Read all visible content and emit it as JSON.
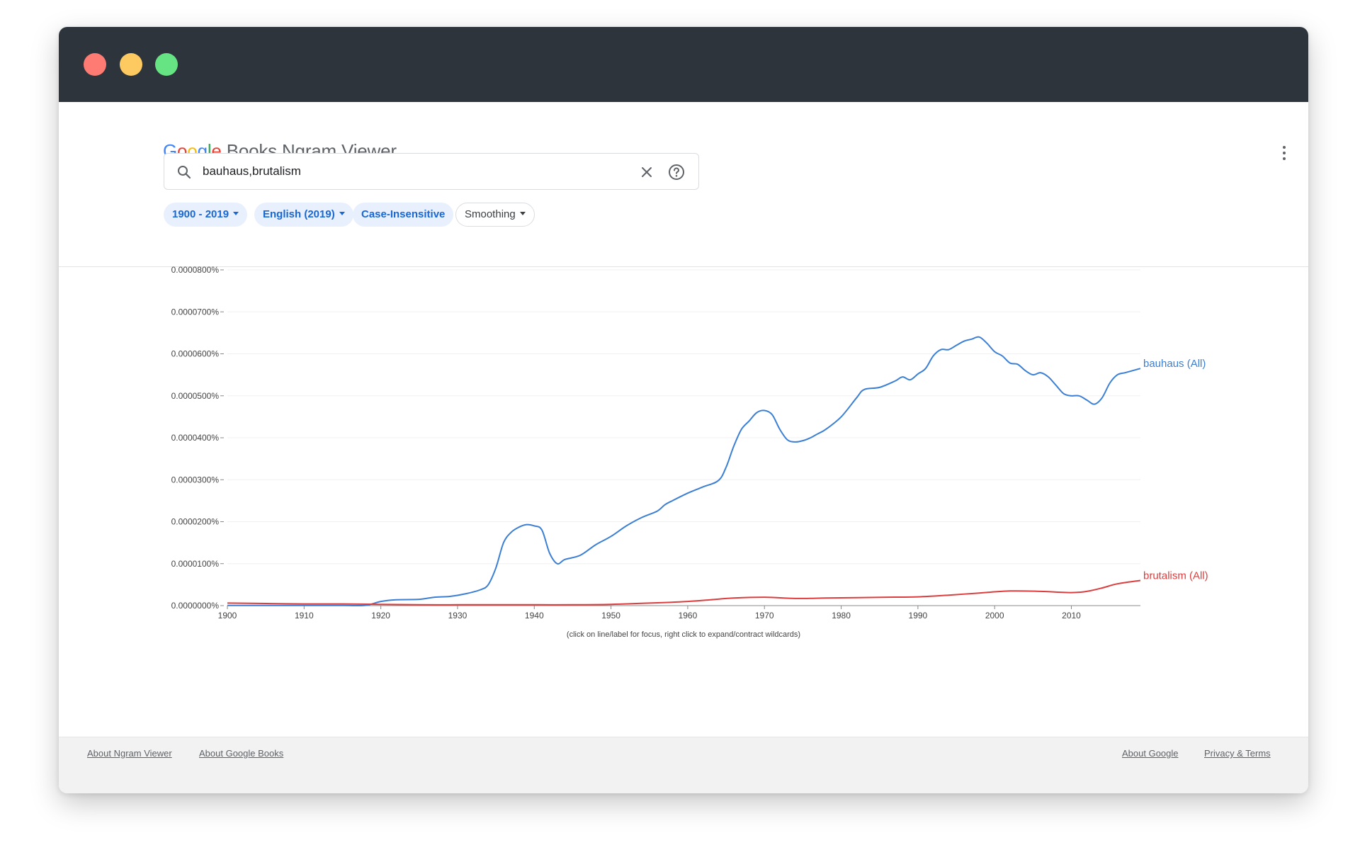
{
  "app": {
    "logo_google": [
      "G",
      "o",
      "o",
      "g",
      "l",
      "e"
    ],
    "logo_rest": " Books Ngram Viewer"
  },
  "search": {
    "value": "bauhaus,brutalism",
    "icon": "search-icon",
    "clear_icon": "close-icon",
    "help_icon": "help-icon"
  },
  "filters": [
    {
      "label": "1900 - 2019",
      "style": "blue",
      "dropdown": true
    },
    {
      "label": "English (2019)",
      "style": "blue",
      "dropdown": true
    },
    {
      "label": "Case-Insensitive",
      "style": "blue",
      "dropdown": false
    },
    {
      "label": "Smoothing",
      "style": "plain",
      "dropdown": true
    }
  ],
  "chart_note": "(click on line/label for focus, right click to expand/contract wildcards)",
  "footer": {
    "left": [
      "About Ngram Viewer",
      "About Google Books"
    ],
    "right": [
      "About Google",
      "Privacy & Terms"
    ]
  },
  "chart_data": {
    "type": "line",
    "title": "",
    "xlabel": "",
    "ylabel": "",
    "xlim": [
      1900,
      2019
    ],
    "ylim": [
      0,
      8e-07
    ],
    "grid": true,
    "y_ticks": [
      "0.0000000%",
      "0.0000100%",
      "0.0000200%",
      "0.0000300%",
      "0.0000400%",
      "0.0000500%",
      "0.0000600%",
      "0.0000700%",
      "0.0000800%"
    ],
    "x_ticks": [
      "1900",
      "1910",
      "1920",
      "1930",
      "1940",
      "1950",
      "1960",
      "1970",
      "1980",
      "1990",
      "2000",
      "2010"
    ],
    "series": [
      {
        "name": "bauhaus (All)",
        "color": "#3b7fd5",
        "x": [
          1900,
          1905,
          1910,
          1915,
          1918,
          1920,
          1922,
          1925,
          1927,
          1929,
          1931,
          1933,
          1934,
          1935,
          1936,
          1937,
          1938,
          1939,
          1940,
          1941,
          1942,
          1943,
          1944,
          1946,
          1948,
          1950,
          1952,
          1954,
          1956,
          1957,
          1958,
          1960,
          1962,
          1964,
          1965,
          1966,
          1967,
          1968,
          1969,
          1970,
          1971,
          1972,
          1973,
          1974,
          1975,
          1976,
          1977,
          1978,
          1980,
          1982,
          1983,
          1985,
          1987,
          1988,
          1989,
          1990,
          1991,
          1992,
          1993,
          1994,
          1995,
          1996,
          1997,
          1998,
          1999,
          2000,
          2001,
          2002,
          2003,
          2004,
          2005,
          2006,
          2007,
          2008,
          2009,
          2010,
          2011,
          2012,
          2013,
          2014,
          2015,
          2016,
          2017,
          2018,
          2019
        ],
        "y": [
          3e-10,
          3e-10,
          3e-10,
          4e-10,
          6e-10,
          1e-08,
          1.4e-08,
          1.5e-08,
          2e-08,
          2.2e-08,
          2.8e-08,
          3.8e-08,
          5e-08,
          9e-08,
          1.5e-07,
          1.75e-07,
          1.87e-07,
          1.93e-07,
          1.9e-07,
          1.8e-07,
          1.25e-07,
          1e-07,
          1.1e-07,
          1.2e-07,
          1.45e-07,
          1.65e-07,
          1.9e-07,
          2.1e-07,
          2.25e-07,
          2.4e-07,
          2.5e-07,
          2.68e-07,
          2.83e-07,
          2.98e-07,
          3.3e-07,
          3.8e-07,
          4.2e-07,
          4.4e-07,
          4.6e-07,
          4.65e-07,
          4.55e-07,
          4.2e-07,
          3.95e-07,
          3.9e-07,
          3.93e-07,
          4e-07,
          4.1e-07,
          4.2e-07,
          4.5e-07,
          4.95e-07,
          5.15e-07,
          5.2e-07,
          5.35e-07,
          5.45e-07,
          5.38e-07,
          5.52e-07,
          5.65e-07,
          5.95e-07,
          6.1e-07,
          6.1e-07,
          6.2e-07,
          6.3e-07,
          6.35e-07,
          6.4e-07,
          6.25e-07,
          6.05e-07,
          5.95e-07,
          5.78e-07,
          5.75e-07,
          5.6e-07,
          5.5e-07,
          5.55e-07,
          5.45e-07,
          5.25e-07,
          5.05e-07,
          5e-07,
          5e-07,
          4.9e-07,
          4.8e-07,
          4.95e-07,
          5.3e-07,
          5.5e-07,
          5.55e-07,
          5.6e-07,
          5.65e-07
        ]
      },
      {
        "name": "brutalism (All)",
        "color": "#db3e3e",
        "x": [
          1900,
          1905,
          1910,
          1915,
          1920,
          1925,
          1930,
          1935,
          1940,
          1945,
          1950,
          1955,
          1960,
          1963,
          1966,
          1970,
          1974,
          1978,
          1982,
          1986,
          1990,
          1994,
          1998,
          2002,
          2006,
          2010,
          2012,
          2014,
          2016,
          2019
        ],
        "y": [
          6e-09,
          5e-09,
          4e-09,
          4e-09,
          3e-09,
          2e-09,
          2e-09,
          2e-09,
          2e-09,
          2e-09,
          3e-09,
          6e-09,
          1e-08,
          1.4e-08,
          1.8e-08,
          2e-08,
          1.7e-08,
          1.8e-08,
          1.9e-08,
          2e-08,
          2.1e-08,
          2.5e-08,
          3e-08,
          3.5e-08,
          3.4e-08,
          3.1e-08,
          3.4e-08,
          4.2e-08,
          5.2e-08,
          6e-08
        ]
      }
    ]
  }
}
